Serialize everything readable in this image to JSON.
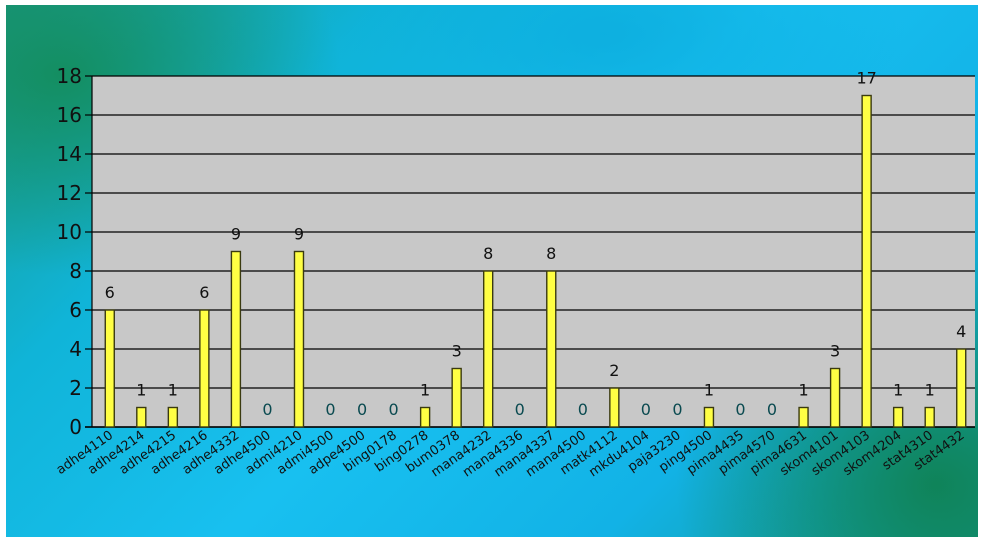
{
  "chart_data": {
    "type": "bar",
    "title": "",
    "xlabel": "",
    "ylabel": "",
    "ylim": [
      0,
      18
    ],
    "yticks": [
      0,
      2,
      4,
      6,
      8,
      10,
      12,
      14,
      16,
      18
    ],
    "grid": true,
    "legend": "none",
    "colors": {
      "bar_fill": "#ffff44",
      "bar_edge": "#3a3a10",
      "plot_bg": "#c8c8c8",
      "label_dark": "#111111",
      "label_zero": "#0a4a50"
    },
    "categories": [
      "adhe4110",
      "adhe4214",
      "adhe4215",
      "adhe4216",
      "adhe4332",
      "adhe4500",
      "admi4210",
      "admi4500",
      "adpe4500",
      "bing0178",
      "bing0278",
      "bum0378",
      "mana4232",
      "mana4336",
      "mana4337",
      "mana4500",
      "matk4112",
      "mkdu4104",
      "paja3230",
      "ping4500",
      "pima4435",
      "pima4570",
      "pima4631",
      "skom4101",
      "skom4103",
      "skom4204",
      "stat4310",
      "stat4432"
    ],
    "values": [
      6,
      1,
      1,
      6,
      9,
      0,
      9,
      0,
      0,
      0,
      1,
      3,
      8,
      0,
      8,
      0,
      2,
      0,
      0,
      1,
      0,
      0,
      1,
      3,
      17,
      1,
      1,
      4
    ]
  }
}
